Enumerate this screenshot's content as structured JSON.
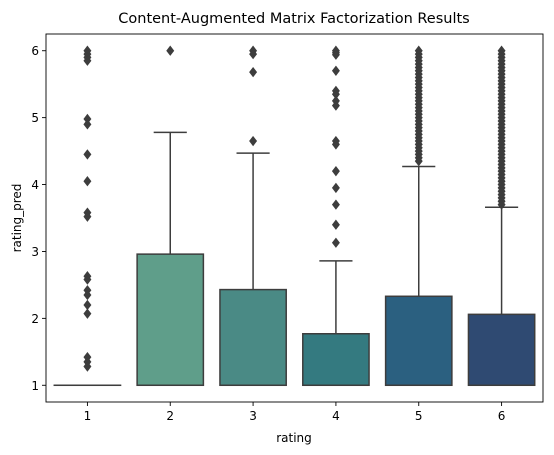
{
  "chart_data": {
    "type": "box",
    "title": "Content-Augmented Matrix Factorization Results",
    "xlabel": "rating",
    "ylabel": "rating_pred",
    "categories": [
      "1",
      "2",
      "3",
      "4",
      "5",
      "6"
    ],
    "yticks": [
      1,
      2,
      3,
      4,
      5,
      6
    ],
    "ylim": [
      0.75,
      6.25
    ],
    "grid": false,
    "boxes": [
      {
        "category": "1",
        "q1": 1.0,
        "median": 1.0,
        "q3": 1.0,
        "whisker_low": 1.0,
        "whisker_high": 1.0,
        "color": "#5a9e8a",
        "outliers": [
          6.0,
          5.95,
          5.9,
          5.85,
          4.98,
          4.9,
          4.45,
          4.05,
          3.58,
          3.52,
          2.63,
          2.58,
          2.42,
          2.35,
          2.2,
          2.07,
          1.42,
          1.35,
          1.28
        ]
      },
      {
        "category": "2",
        "q1": 1.0,
        "median": 1.0,
        "q3": 2.96,
        "whisker_low": 1.0,
        "whisker_high": 4.78,
        "color": "#5f9e8a",
        "outliers": [
          6.0
        ]
      },
      {
        "category": "3",
        "q1": 1.0,
        "median": 1.0,
        "q3": 2.43,
        "whisker_low": 1.0,
        "whisker_high": 4.47,
        "color": "#4a8a85",
        "outliers": [
          6.0,
          5.95,
          5.68,
          4.65
        ]
      },
      {
        "category": "4",
        "q1": 1.0,
        "median": 1.0,
        "q3": 1.77,
        "whisker_low": 1.0,
        "whisker_high": 2.86,
        "color": "#347a80",
        "outliers": [
          6.0,
          5.97,
          5.94,
          5.7,
          5.4,
          5.35,
          5.25,
          5.18,
          4.65,
          4.6,
          4.2,
          3.95,
          3.7,
          3.4,
          3.13
        ]
      },
      {
        "category": "5",
        "q1": 1.0,
        "median": 1.0,
        "q3": 2.33,
        "whisker_low": 1.0,
        "whisker_high": 4.27,
        "color": "#2b6080",
        "outliers": [
          6.0,
          5.95,
          5.9,
          5.85,
          5.8,
          5.75,
          5.7,
          5.65,
          5.6,
          5.55,
          5.5,
          5.45,
          5.4,
          5.35,
          5.3,
          5.25,
          5.2,
          5.15,
          5.1,
          5.05,
          5.0,
          4.95,
          4.9,
          4.85,
          4.8,
          4.75,
          4.7,
          4.65,
          4.6,
          4.55,
          4.5,
          4.45,
          4.4,
          4.35
        ]
      },
      {
        "category": "6",
        "q1": 1.0,
        "median": 1.0,
        "q3": 2.06,
        "whisker_low": 1.0,
        "whisker_high": 3.66,
        "color": "#2f4a72",
        "outliers": [
          6.0,
          5.95,
          5.9,
          5.85,
          5.8,
          5.75,
          5.7,
          5.65,
          5.6,
          5.55,
          5.5,
          5.45,
          5.4,
          5.35,
          5.3,
          5.25,
          5.2,
          5.15,
          5.1,
          5.05,
          5.0,
          4.95,
          4.9,
          4.85,
          4.8,
          4.75,
          4.7,
          4.65,
          4.6,
          4.55,
          4.5,
          4.45,
          4.4,
          4.35,
          4.3,
          4.25,
          4.2,
          4.15,
          4.1,
          4.05,
          4.0,
          3.95,
          3.9,
          3.85,
          3.8,
          3.75,
          3.7
        ]
      }
    ]
  }
}
